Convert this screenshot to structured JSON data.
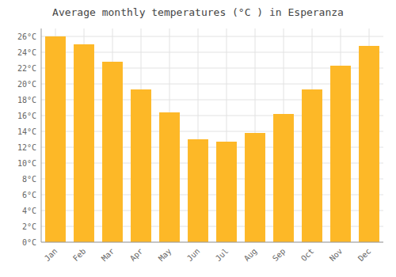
{
  "chart_data": {
    "type": "bar",
    "title": "Average monthly temperatures (°C ) in Esperanza",
    "categories": [
      "Jan",
      "Feb",
      "Mar",
      "Apr",
      "May",
      "Jun",
      "Jul",
      "Aug",
      "Sep",
      "Oct",
      "Nov",
      "Dec"
    ],
    "values": [
      26.0,
      25.0,
      22.8,
      19.3,
      16.4,
      13.0,
      12.7,
      13.8,
      16.2,
      19.3,
      22.3,
      24.8
    ],
    "color": "#FDB827",
    "ylim": [
      0,
      27
    ],
    "yticks": [
      {
        "value": 0,
        "label": "0°C"
      },
      {
        "value": 2,
        "label": "2°C"
      },
      {
        "value": 4,
        "label": "4°C"
      },
      {
        "value": 6,
        "label": "6°C"
      },
      {
        "value": 8,
        "label": "8°C"
      },
      {
        "value": 10,
        "label": "10°C"
      },
      {
        "value": 12,
        "label": "12°C"
      },
      {
        "value": 14,
        "label": "14°C"
      },
      {
        "value": 16,
        "label": "16°C"
      },
      {
        "value": 18,
        "label": "18°C"
      },
      {
        "value": 20,
        "label": "20°C"
      },
      {
        "value": 22,
        "label": "22°C"
      },
      {
        "value": 24,
        "label": "24°C"
      },
      {
        "value": 26,
        "label": "26°C"
      }
    ],
    "grid": true
  }
}
